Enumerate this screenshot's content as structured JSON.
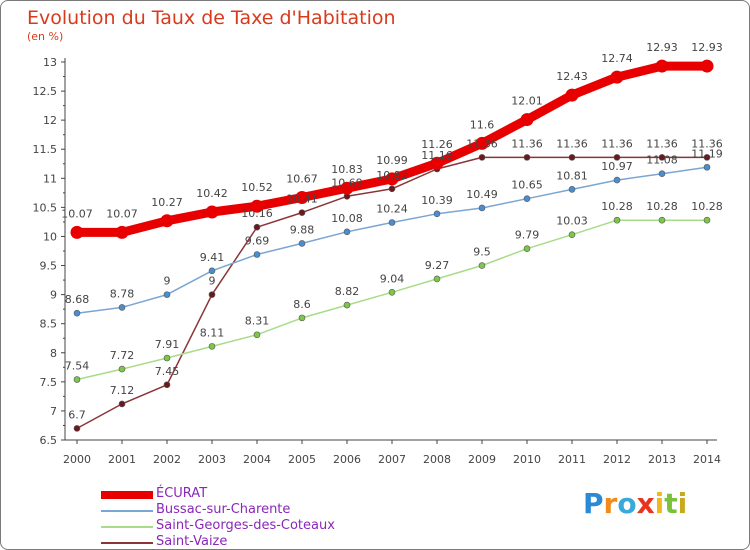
{
  "title": "Evolution du Taux de Taxe d'Habitation",
  "subtitle": "(en %)",
  "logo": {
    "letters": [
      "P",
      "r",
      "o",
      "x",
      "i",
      "t",
      "i"
    ],
    "colors": [
      "#2a8ad6",
      "#f08c1c",
      "#3aa8d8",
      "#e8341c",
      "#f0b81c",
      "#7ac23a",
      "#c8a81c"
    ]
  },
  "chart_data": {
    "type": "line",
    "x": [
      "2000",
      "2001",
      "2002",
      "2003",
      "2004",
      "2005",
      "2006",
      "2007",
      "2008",
      "2009",
      "2010",
      "2011",
      "2012",
      "2013",
      "2014"
    ],
    "ylim": [
      6.5,
      13
    ],
    "yticks": [
      "6.5",
      "7",
      "7.5",
      "8",
      "8.5",
      "9",
      "9.5",
      "10",
      "10.5",
      "11",
      "11.5",
      "12",
      "12.5",
      "13"
    ],
    "grid": false,
    "legend_position": "bottom-left",
    "series": [
      {
        "name": "ÉCURAT",
        "color": "#e80000",
        "marker": "#e80000",
        "values": [
          10.07,
          10.07,
          10.27,
          10.42,
          10.52,
          10.67,
          10.83,
          10.99,
          11.26,
          11.6,
          12.01,
          12.43,
          12.74,
          12.93,
          12.93
        ],
        "labels": [
          "10.07",
          "10.07",
          "10.27",
          "10.42",
          "10.52",
          "10.67",
          "10.83",
          "10.99",
          "11.26",
          "11.6",
          "12.01",
          "12.43",
          "12.74",
          "12.93",
          "12.93"
        ]
      },
      {
        "name": "Bussac-sur-Charente",
        "color": "#7aa6d2",
        "marker": "#4a8ed0",
        "values": [
          8.68,
          8.78,
          9,
          9.41,
          9.69,
          9.88,
          10.08,
          10.24,
          10.39,
          10.49,
          10.65,
          10.81,
          10.97,
          11.08,
          11.19
        ],
        "labels": [
          "8.68",
          "8.78",
          "9",
          "9.41",
          "9.69",
          "9.88",
          "10.08",
          "10.24",
          "10.39",
          "10.49",
          "10.65",
          "10.81",
          "10.97",
          "11.08",
          "11.19"
        ]
      },
      {
        "name": "Saint-Georges-des-Coteaux",
        "color": "#a8dc88",
        "marker": "#7cc64a",
        "values": [
          7.54,
          7.72,
          7.91,
          8.11,
          8.31,
          8.6,
          8.82,
          9.04,
          9.27,
          9.5,
          9.79,
          10.03,
          10.28,
          10.28,
          10.28
        ],
        "labels": [
          "7.54",
          "7.72",
          "7.91",
          "8.11",
          "8.31",
          "8.6",
          "8.82",
          "9.04",
          "9.27",
          "9.5",
          "9.79",
          "10.03",
          "10.28",
          "10.28",
          "10.28"
        ]
      },
      {
        "name": "Saint-Vaize",
        "color": "#8a3438",
        "marker": "#6a1a1e",
        "values": [
          6.7,
          7.12,
          7.45,
          9,
          10.16,
          10.41,
          10.69,
          10.82,
          11.16,
          11.36,
          11.36,
          11.36,
          11.36,
          11.36,
          11.36
        ],
        "labels": [
          "6.7",
          "7.12",
          "7.45",
          "9",
          "10.16",
          "10.41",
          "10.69",
          "10.82",
          "11.16",
          "11.36",
          "11.36",
          "11.36",
          "11.36",
          "11.36",
          "11.36"
        ]
      }
    ]
  }
}
